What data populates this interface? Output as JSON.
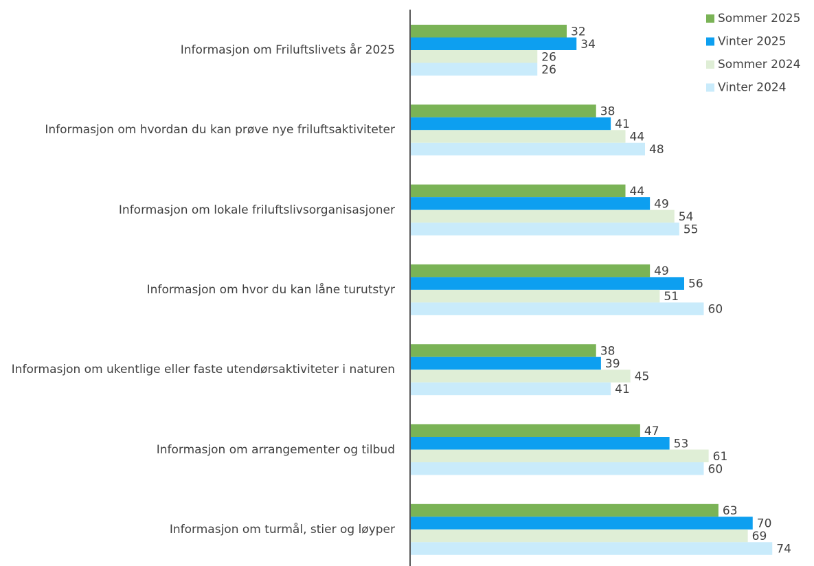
{
  "chart_data": {
    "type": "barh",
    "categories": [
      "Informasjon om Friluftslivets år 2025",
      "Informasjon om hvordan du kan prøve nye friluftsaktiviteter",
      "Informasjon om lokale friluftslivsorganisasjoner",
      "Informasjon om hvor du kan låne turutstyr",
      "Informasjon om ukentlige eller faste utendørsaktiviteter i naturen",
      "Informasjon om arrangementer og tilbud",
      "Informasjon om turmål, stier og løyper"
    ],
    "series": [
      {
        "name": "Sommer 2025",
        "color": "#7ab356",
        "values": [
          32,
          38,
          44,
          49,
          38,
          47,
          63
        ]
      },
      {
        "name": "Vinter 2025",
        "color": "#0d9ff0",
        "values": [
          34,
          41,
          49,
          56,
          39,
          53,
          70
        ]
      },
      {
        "name": "Sommer 2024",
        "color": "#dfeed6",
        "values": [
          26,
          44,
          54,
          51,
          45,
          61,
          69
        ]
      },
      {
        "name": "Vinter 2024",
        "color": "#c9ebfb",
        "values": [
          26,
          48,
          55,
          60,
          41,
          60,
          74
        ]
      }
    ],
    "xlim": [
      0,
      80
    ],
    "legend": "top-right"
  }
}
